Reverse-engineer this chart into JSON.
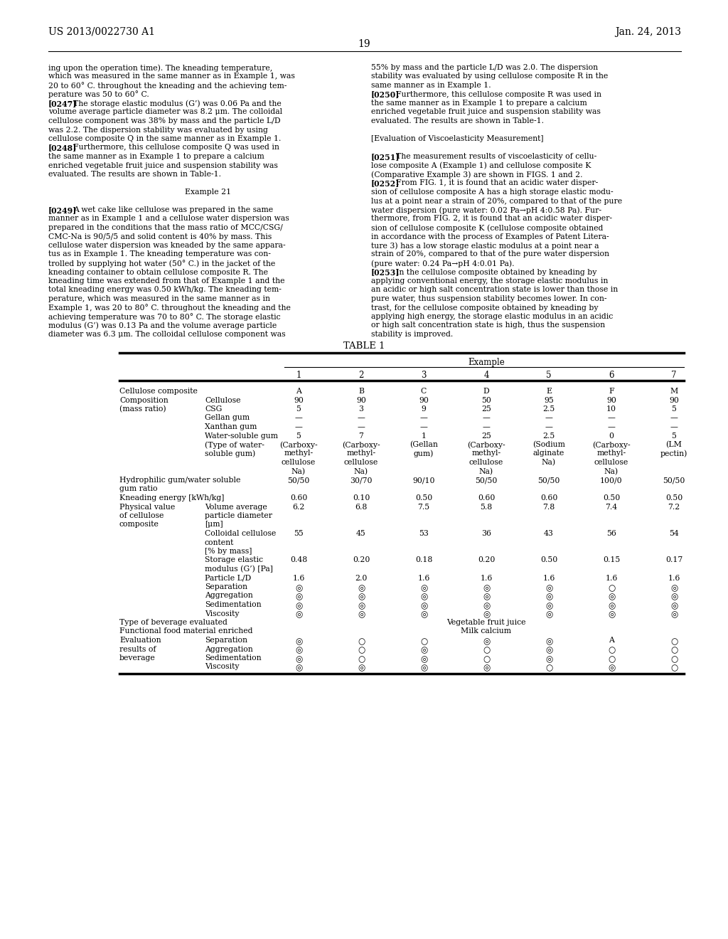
{
  "page_number": "19",
  "patent_number": "US 2013/0022730 A1",
  "patent_date": "Jan. 24, 2013",
  "background_color": "#ffffff",
  "left_col_lines": [
    [
      "",
      "ing upon the operation time). The kneading temperature,"
    ],
    [
      "",
      "which was measured in the same manner as in Example 1, was"
    ],
    [
      "",
      "20 to 60° C. throughout the kneading and the achieving tem-"
    ],
    [
      "",
      "perature was 50 to 60° C."
    ],
    [
      "bold",
      "[0247]    The storage elastic modulus (G’) was 0.06 Pa and the"
    ],
    [
      "",
      "volume average particle diameter was 8.2 μm. The colloidal"
    ],
    [
      "",
      "cellulose component was 38% by mass and the particle L/D"
    ],
    [
      "",
      "was 2.2. The dispersion stability was evaluated by using"
    ],
    [
      "",
      "cellulose composite Q in the same manner as in Example 1."
    ],
    [
      "bold",
      "[0248]    Furthermore, this cellulose composite Q was used in"
    ],
    [
      "",
      "the same manner as in Example 1 to prepare a calcium"
    ],
    [
      "",
      "enriched vegetable fruit juice and suspension stability was"
    ],
    [
      "",
      "evaluated. The results are shown in Table-1."
    ],
    [
      "",
      ""
    ],
    [
      "center",
      "Example 21"
    ],
    [
      "",
      ""
    ],
    [
      "bold",
      "[0249]    A wet cake like cellulose was prepared in the same"
    ],
    [
      "",
      "manner as in Example 1 and a cellulose water dispersion was"
    ],
    [
      "",
      "prepared in the conditions that the mass ratio of MCC/CSG/"
    ],
    [
      "",
      "CMC-Na is 90/5/5 and solid content is 40% by mass. This"
    ],
    [
      "",
      "cellulose water dispersion was kneaded by the same appara-"
    ],
    [
      "",
      "tus as in Example 1. The kneading temperature was con-"
    ],
    [
      "",
      "trolled by supplying hot water (50° C.) in the jacket of the"
    ],
    [
      "",
      "kneading container to obtain cellulose composite R. The"
    ],
    [
      "",
      "kneading time was extended from that of Example 1 and the"
    ],
    [
      "",
      "total kneading energy was 0.50 kWh/kg. The kneading tem-"
    ],
    [
      "",
      "perature, which was measured in the same manner as in"
    ],
    [
      "",
      "Example 1, was 20 to 80° C. throughout the kneading and the"
    ],
    [
      "",
      "achieving temperature was 70 to 80° C. The storage elastic"
    ],
    [
      "",
      "modulus (G’) was 0.13 Pa and the volume average particle"
    ],
    [
      "",
      "diameter was 6.3 μm. The colloidal cellulose component was"
    ]
  ],
  "right_col_lines": [
    [
      "",
      "55% by mass and the particle L/D was 2.0. The dispersion"
    ],
    [
      "",
      "stability was evaluated by using cellulose composite R in the"
    ],
    [
      "",
      "same manner as in Example 1."
    ],
    [
      "bold",
      "[0250]    Furthermore, this cellulose composite R was used in"
    ],
    [
      "",
      "the same manner as in Example 1 to prepare a calcium"
    ],
    [
      "",
      "enriched vegetable fruit juice and suspension stability was"
    ],
    [
      "",
      "evaluated. The results are shown in Table-1."
    ],
    [
      "",
      ""
    ],
    [
      "",
      "[Evaluation of Viscoelasticity Measurement]"
    ],
    [
      "",
      ""
    ],
    [
      "bold",
      "[0251]    The measurement results of viscoelasticity of cellu-"
    ],
    [
      "",
      "lose composite A (Example 1) and cellulose composite K"
    ],
    [
      "",
      "(Comparative Example 3) are shown in FIGS. 1 and 2."
    ],
    [
      "bold",
      "[0252]    From FIG. 1, it is found that an acidic water disper-"
    ],
    [
      "",
      "sion of cellulose composite A has a high storage elastic modu-"
    ],
    [
      "",
      "lus at a point near a strain of 20%, compared to that of the pure"
    ],
    [
      "",
      "water dispersion (pure water: 0.02 Pa→pH 4:0.58 Pa). Fur-"
    ],
    [
      "",
      "thermore, from FIG. 2, it is found that an acidic water disper-"
    ],
    [
      "",
      "sion of cellulose composite K (cellulose composite obtained"
    ],
    [
      "",
      "in accordance with the process of Examples of Patent Litera-"
    ],
    [
      "",
      "ture 3) has a low storage elastic modulus at a point near a"
    ],
    [
      "",
      "strain of 20%, compared to that of the pure water dispersion"
    ],
    [
      "",
      "(pure water: 0.24 Pa→pH 4:0.01 Pa)."
    ],
    [
      "bold",
      "[0253]    In the cellulose composite obtained by kneading by"
    ],
    [
      "",
      "applying conventional energy, the storage elastic modulus in"
    ],
    [
      "",
      "an acidic or high salt concentration state is lower than those in"
    ],
    [
      "",
      "pure water, thus suspension stability becomes lower. In con-"
    ],
    [
      "",
      "trast, for the cellulose composite obtained by kneading by"
    ],
    [
      "",
      "applying high energy, the storage elastic modulus in an acidic"
    ],
    [
      "",
      "or high salt concentration state is high, thus the suspension"
    ],
    [
      "",
      "stability is improved."
    ]
  ],
  "table": {
    "title": "TABLE 1",
    "example_nums": [
      "1",
      "2",
      "3",
      "4",
      "5",
      "6",
      "7"
    ],
    "rows": [
      {
        "col1": "Cellulose composite",
        "col2": "",
        "vals": [
          "A",
          "B",
          "C",
          "D",
          "E",
          "F",
          "M"
        ]
      },
      {
        "col1": "Composition",
        "col2": "Cellulose",
        "vals": [
          "90",
          "90",
          "90",
          "50",
          "95",
          "90",
          "90"
        ]
      },
      {
        "col1": "(mass ratio)",
        "col2": "CSG",
        "vals": [
          "5",
          "3",
          "9",
          "25",
          "2.5",
          "10",
          "5"
        ]
      },
      {
        "col1": "",
        "col2": "Gellan gum",
        "vals": [
          "—",
          "—",
          "—",
          "—",
          "—",
          "—",
          "—"
        ]
      },
      {
        "col1": "",
        "col2": "Xanthan gum",
        "vals": [
          "—",
          "—",
          "—",
          "—",
          "—",
          "—",
          "—"
        ]
      },
      {
        "col1": "",
        "col2": "Water-soluble gum",
        "vals": [
          "5",
          "7",
          "1",
          "25",
          "2.5",
          "0",
          "5"
        ]
      },
      {
        "col1": "",
        "col2": "(Type of water-",
        "vals": [
          "(Carboxy-",
          "(Carboxy-",
          "(Gellan",
          "(Carboxy-",
          "(Sodium",
          "(Carboxy-",
          "(LM"
        ]
      },
      {
        "col1": "",
        "col2": "soluble gum)",
        "vals": [
          "methyl-",
          "methyl-",
          "gum)",
          "methyl-",
          "alginate",
          "methyl-",
          "pectin)"
        ]
      },
      {
        "col1": "",
        "col2": "",
        "vals": [
          "cellulose",
          "cellulose",
          "",
          "cellulose",
          "Na)",
          "cellulose",
          ""
        ]
      },
      {
        "col1": "",
        "col2": "",
        "vals": [
          "Na)",
          "Na)",
          "",
          "Na)",
          "",
          "Na)",
          ""
        ]
      },
      {
        "col1": "Hydrophilic gum/water soluble",
        "col2": "",
        "vals": [
          "50/50",
          "30/70",
          "90/10",
          "50/50",
          "50/50",
          "100/0",
          "50/50"
        ]
      },
      {
        "col1": "gum ratio",
        "col2": "",
        "vals": []
      },
      {
        "col1": "Kneading energy [kWh/kg]",
        "col2": "",
        "vals": [
          "0.60",
          "0.10",
          "0.50",
          "0.60",
          "0.60",
          "0.50",
          "0.50"
        ]
      },
      {
        "col1": "Physical value",
        "col2": "Volume average",
        "vals": [
          "6.2",
          "6.8",
          "7.5",
          "5.8",
          "7.8",
          "7.4",
          "7.2"
        ]
      },
      {
        "col1": "of cellulose",
        "col2": "particle diameter",
        "vals": []
      },
      {
        "col1": "composite",
        "col2": "[μm]",
        "vals": []
      },
      {
        "col1": "",
        "col2": "Colloidal cellulose",
        "vals": [
          "55",
          "45",
          "53",
          "36",
          "43",
          "56",
          "54"
        ]
      },
      {
        "col1": "",
        "col2": "content",
        "vals": []
      },
      {
        "col1": "",
        "col2": "[% by mass]",
        "vals": []
      },
      {
        "col1": "",
        "col2": "Storage elastic",
        "vals": [
          "0.48",
          "0.20",
          "0.18",
          "0.20",
          "0.50",
          "0.15",
          "0.17"
        ]
      },
      {
        "col1": "",
        "col2": "modulus (G’) [Pa]",
        "vals": []
      },
      {
        "col1": "",
        "col2": "Particle L/D",
        "vals": [
          "1.6",
          "2.0",
          "1.6",
          "1.6",
          "1.6",
          "1.6",
          "1.6"
        ]
      },
      {
        "col1": "",
        "col2": "Separation",
        "vals": [
          "◎",
          "◎",
          "◎",
          "◎",
          "◎",
          "○",
          "◎"
        ]
      },
      {
        "col1": "",
        "col2": "Aggregation",
        "vals": [
          "◎",
          "◎",
          "◎",
          "◎",
          "◎",
          "◎",
          "◎"
        ]
      },
      {
        "col1": "",
        "col2": "Sedimentation",
        "vals": [
          "◎",
          "◎",
          "◎",
          "◎",
          "◎",
          "◎",
          "◎"
        ]
      },
      {
        "col1": "",
        "col2": "Viscosity",
        "vals": [
          "◎",
          "◎",
          "◎",
          "◎",
          "◎",
          "◎",
          "◎"
        ]
      },
      {
        "col1": "Type of beverage evaluated",
        "col2": "",
        "vals_center": "Vegetable fruit juice"
      },
      {
        "col1": "Functional food material enriched",
        "col2": "",
        "vals_center": "Milk calcium"
      },
      {
        "col1": "Evaluation",
        "col2": "Separation",
        "vals": [
          "◎",
          "○",
          "○",
          "◎",
          "◎",
          "A",
          "○"
        ]
      },
      {
        "col1": "results of",
        "col2": "Aggregation",
        "vals": [
          "◎",
          "○",
          "◎",
          "○",
          "◎",
          "○",
          "○"
        ]
      },
      {
        "col1": "beverage",
        "col2": "Sedimentation",
        "vals": [
          "◎",
          "○",
          "◎",
          "○",
          "◎",
          "○",
          "○"
        ]
      },
      {
        "col1": "",
        "col2": "Viscosity",
        "vals": [
          "◎",
          "◎",
          "◎",
          "◎",
          "○",
          "◎",
          "○"
        ]
      }
    ]
  }
}
